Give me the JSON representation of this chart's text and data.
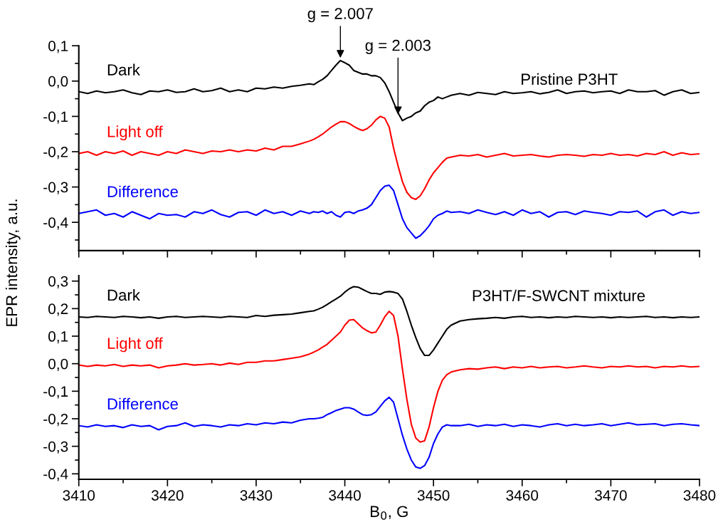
{
  "chart_data": [
    {
      "type": "line",
      "ylabel": "EPR intensity, a.u.",
      "xlim": [
        3410,
        3480
      ],
      "xticks": [
        3410,
        3420,
        3430,
        3440,
        3450,
        3460,
        3470,
        3480
      ],
      "ylim": [
        -0.48,
        0.1
      ],
      "yticks": [
        {
          "value": 0.1,
          "label": "0,1"
        },
        {
          "value": 0.0,
          "label": "0,0"
        },
        {
          "value": -0.1,
          "label": "-0,1"
        },
        {
          "value": -0.2,
          "label": "-0,2"
        },
        {
          "value": -0.3,
          "label": "-0,3"
        },
        {
          "value": -0.4,
          "label": "-0,4"
        }
      ],
      "tick_labels": "y",
      "grid": false,
      "legend": false,
      "annotations": [
        "Pristine P3HT",
        {
          "text": "g = 2.007",
          "x": 3439.5,
          "y": 0.06
        },
        {
          "text": "g = 2.003",
          "x": 3446,
          "y": -0.1
        }
      ],
      "x": [
        3410,
        3411,
        3412,
        3413,
        3414,
        3415,
        3416,
        3417,
        3418,
        3419,
        3420,
        3421,
        3422,
        3423,
        3424,
        3425,
        3426,
        3427,
        3428,
        3429,
        3430,
        3431,
        3432,
        3433,
        3434,
        3435,
        3436,
        3436.5,
        3437,
        3437.5,
        3438,
        3438.5,
        3439,
        3439.5,
        3440,
        3440.5,
        3441,
        3441.5,
        3442,
        3442.5,
        3443,
        3443.5,
        3444,
        3444.5,
        3445,
        3445.5,
        3446,
        3446.5,
        3447,
        3447.5,
        3448,
        3448.5,
        3449,
        3449.5,
        3450,
        3450.5,
        3451,
        3451.5,
        3452,
        3453,
        3454,
        3455,
        3456,
        3457,
        3458,
        3459,
        3460,
        3461,
        3462,
        3463,
        3464,
        3465,
        3466,
        3467,
        3468,
        3469,
        3470,
        3471,
        3472,
        3473,
        3474,
        3475,
        3476,
        3477,
        3478,
        3479,
        3480
      ],
      "series": [
        {
          "name": "Dark",
          "color": "#000000",
          "values": [
            -0.03,
            -0.035,
            -0.028,
            -0.033,
            -0.03,
            -0.025,
            -0.033,
            -0.038,
            -0.028,
            -0.03,
            -0.025,
            -0.032,
            -0.03,
            -0.022,
            -0.03,
            -0.027,
            -0.02,
            -0.03,
            -0.025,
            -0.03,
            -0.02,
            -0.022,
            -0.017,
            -0.02,
            -0.015,
            -0.012,
            -0.008,
            -0.01,
            -0.002,
            0.005,
            0.015,
            0.03,
            0.045,
            0.058,
            0.052,
            0.045,
            0.03,
            0.025,
            0.02,
            0.02,
            0.015,
            0.015,
            0.01,
            -0.005,
            -0.03,
            -0.06,
            -0.09,
            -0.112,
            -0.105,
            -0.1,
            -0.09,
            -0.085,
            -0.07,
            -0.06,
            -0.055,
            -0.045,
            -0.05,
            -0.045,
            -0.04,
            -0.035,
            -0.04,
            -0.032,
            -0.035,
            -0.038,
            -0.03,
            -0.035,
            -0.033,
            -0.03,
            -0.036,
            -0.032,
            -0.025,
            -0.035,
            -0.03,
            -0.028,
            -0.033,
            -0.03,
            -0.028,
            -0.035,
            -0.025,
            -0.03,
            -0.03,
            -0.027,
            -0.04,
            -0.03,
            -0.025,
            -0.035,
            -0.032
          ]
        },
        {
          "name": "Light off",
          "color": "#ff0000",
          "values": [
            -0.205,
            -0.2,
            -0.21,
            -0.2,
            -0.205,
            -0.198,
            -0.21,
            -0.2,
            -0.205,
            -0.21,
            -0.2,
            -0.205,
            -0.195,
            -0.2,
            -0.205,
            -0.198,
            -0.2,
            -0.195,
            -0.2,
            -0.195,
            -0.198,
            -0.19,
            -0.195,
            -0.185,
            -0.185,
            -0.178,
            -0.17,
            -0.165,
            -0.158,
            -0.15,
            -0.14,
            -0.13,
            -0.122,
            -0.115,
            -0.115,
            -0.12,
            -0.128,
            -0.135,
            -0.14,
            -0.135,
            -0.125,
            -0.11,
            -0.1,
            -0.105,
            -0.13,
            -0.19,
            -0.24,
            -0.285,
            -0.315,
            -0.33,
            -0.335,
            -0.325,
            -0.305,
            -0.28,
            -0.26,
            -0.245,
            -0.23,
            -0.218,
            -0.215,
            -0.21,
            -0.212,
            -0.208,
            -0.215,
            -0.21,
            -0.205,
            -0.212,
            -0.21,
            -0.208,
            -0.212,
            -0.215,
            -0.21,
            -0.208,
            -0.21,
            -0.213,
            -0.208,
            -0.21,
            -0.205,
            -0.21,
            -0.208,
            -0.212,
            -0.205,
            -0.208,
            -0.2,
            -0.21,
            -0.203,
            -0.208,
            -0.206
          ]
        },
        {
          "name": "Difference",
          "color": "#0000ff",
          "values": [
            -0.375,
            -0.37,
            -0.365,
            -0.38,
            -0.375,
            -0.385,
            -0.37,
            -0.38,
            -0.39,
            -0.375,
            -0.38,
            -0.378,
            -0.385,
            -0.37,
            -0.375,
            -0.365,
            -0.378,
            -0.385,
            -0.372,
            -0.37,
            -0.38,
            -0.365,
            -0.375,
            -0.37,
            -0.38,
            -0.368,
            -0.375,
            -0.37,
            -0.372,
            -0.368,
            -0.375,
            -0.37,
            -0.38,
            -0.385,
            -0.372,
            -0.37,
            -0.375,
            -0.368,
            -0.365,
            -0.36,
            -0.35,
            -0.33,
            -0.31,
            -0.298,
            -0.295,
            -0.31,
            -0.35,
            -0.39,
            -0.415,
            -0.43,
            -0.445,
            -0.438,
            -0.425,
            -0.41,
            -0.39,
            -0.38,
            -0.375,
            -0.368,
            -0.372,
            -0.37,
            -0.375,
            -0.365,
            -0.372,
            -0.378,
            -0.37,
            -0.38,
            -0.365,
            -0.375,
            -0.37,
            -0.385,
            -0.372,
            -0.37,
            -0.378,
            -0.368,
            -0.372,
            -0.375,
            -0.38,
            -0.37,
            -0.372,
            -0.368,
            -0.385,
            -0.37,
            -0.365,
            -0.38,
            -0.37,
            -0.375,
            -0.372
          ]
        }
      ]
    },
    {
      "type": "line",
      "xlabel": "B$_{0}$, G",
      "xlim": [
        3410,
        3480
      ],
      "xticks": [
        3410,
        3420,
        3430,
        3440,
        3450,
        3460,
        3470,
        3480
      ],
      "ylim": [
        -0.42,
        0.32
      ],
      "yticks": [
        {
          "value": 0.3,
          "label": "0,3"
        },
        {
          "value": 0.2,
          "label": "0,2"
        },
        {
          "value": 0.1,
          "label": "0,1"
        },
        {
          "value": 0.0,
          "label": "0,0"
        },
        {
          "value": -0.1,
          "label": "-0,1"
        },
        {
          "value": -0.2,
          "label": "-0,2"
        },
        {
          "value": -0.3,
          "label": "-0,3"
        },
        {
          "value": -0.4,
          "label": "-0,4"
        }
      ],
      "grid": false,
      "legend": false,
      "annotations": [
        "P3HT/F-SWCNT mixture"
      ],
      "x": [
        3410,
        3411,
        3412,
        3413,
        3414,
        3415,
        3416,
        3417,
        3418,
        3419,
        3420,
        3421,
        3422,
        3423,
        3424,
        3425,
        3426,
        3427,
        3428,
        3429,
        3430,
        3431,
        3432,
        3433,
        3434,
        3435,
        3436,
        3436.5,
        3437,
        3437.5,
        3438,
        3438.5,
        3439,
        3439.5,
        3440,
        3440.5,
        3441,
        3441.5,
        3442,
        3442.5,
        3443,
        3443.5,
        3444,
        3444.5,
        3445,
        3445.5,
        3446,
        3446.5,
        3447,
        3447.5,
        3448,
        3448.5,
        3449,
        3449.5,
        3450,
        3450.5,
        3451,
        3451.5,
        3452,
        3453,
        3454,
        3455,
        3456,
        3457,
        3458,
        3459,
        3460,
        3461,
        3462,
        3463,
        3464,
        3465,
        3466,
        3467,
        3468,
        3469,
        3470,
        3471,
        3472,
        3473,
        3474,
        3475,
        3476,
        3477,
        3478,
        3479,
        3480
      ],
      "series": [
        {
          "name": "Dark",
          "color": "#000000",
          "values": [
            0.17,
            0.168,
            0.172,
            0.17,
            0.168,
            0.172,
            0.17,
            0.167,
            0.17,
            0.165,
            0.17,
            0.172,
            0.168,
            0.17,
            0.172,
            0.17,
            0.168,
            0.172,
            0.17,
            0.168,
            0.175,
            0.172,
            0.176,
            0.178,
            0.18,
            0.185,
            0.19,
            0.192,
            0.198,
            0.205,
            0.215,
            0.225,
            0.235,
            0.245,
            0.26,
            0.272,
            0.28,
            0.278,
            0.27,
            0.262,
            0.255,
            0.255,
            0.252,
            0.26,
            0.262,
            0.26,
            0.255,
            0.235,
            0.19,
            0.14,
            0.095,
            0.055,
            0.03,
            0.03,
            0.05,
            0.075,
            0.1,
            0.125,
            0.14,
            0.155,
            0.16,
            0.163,
            0.165,
            0.168,
            0.165,
            0.17,
            0.172,
            0.168,
            0.17,
            0.167,
            0.17,
            0.168,
            0.172,
            0.17,
            0.168,
            0.17,
            0.167,
            0.17,
            0.168,
            0.17,
            0.172,
            0.168,
            0.17,
            0.167,
            0.17,
            0.168,
            0.17
          ]
        },
        {
          "name": "Light off",
          "color": "#ff0000",
          "values": [
            -0.005,
            -0.01,
            -0.005,
            -0.008,
            -0.003,
            -0.01,
            -0.005,
            -0.008,
            -0.005,
            -0.015,
            -0.008,
            -0.005,
            0.0,
            -0.005,
            -0.003,
            0.0,
            -0.005,
            0.002,
            -0.003,
            0.005,
            0.005,
            0.01,
            0.01,
            0.015,
            0.02,
            0.025,
            0.035,
            0.042,
            0.05,
            0.06,
            0.07,
            0.085,
            0.1,
            0.115,
            0.14,
            0.158,
            0.16,
            0.145,
            0.13,
            0.12,
            0.112,
            0.115,
            0.14,
            0.17,
            0.19,
            0.175,
            0.1,
            -0.02,
            -0.13,
            -0.22,
            -0.27,
            -0.285,
            -0.28,
            -0.23,
            -0.16,
            -0.1,
            -0.06,
            -0.04,
            -0.03,
            -0.022,
            -0.018,
            -0.02,
            -0.015,
            -0.012,
            -0.018,
            -0.012,
            -0.015,
            -0.01,
            -0.015,
            -0.012,
            -0.01,
            -0.015,
            -0.012,
            -0.008,
            -0.012,
            -0.015,
            -0.01,
            -0.012,
            -0.008,
            -0.012,
            -0.01,
            -0.015,
            -0.01,
            -0.012,
            -0.008,
            -0.012,
            -0.01
          ]
        },
        {
          "name": "Difference",
          "color": "#0000ff",
          "values": [
            -0.225,
            -0.23,
            -0.222,
            -0.228,
            -0.225,
            -0.232,
            -0.222,
            -0.228,
            -0.225,
            -0.24,
            -0.228,
            -0.225,
            -0.215,
            -0.228,
            -0.222,
            -0.225,
            -0.23,
            -0.222,
            -0.225,
            -0.218,
            -0.222,
            -0.215,
            -0.218,
            -0.212,
            -0.215,
            -0.205,
            -0.2,
            -0.2,
            -0.198,
            -0.195,
            -0.185,
            -0.178,
            -0.17,
            -0.165,
            -0.16,
            -0.16,
            -0.165,
            -0.175,
            -0.185,
            -0.188,
            -0.185,
            -0.175,
            -0.155,
            -0.135,
            -0.122,
            -0.14,
            -0.2,
            -0.26,
            -0.31,
            -0.35,
            -0.375,
            -0.38,
            -0.37,
            -0.34,
            -0.29,
            -0.255,
            -0.23,
            -0.222,
            -0.225,
            -0.225,
            -0.22,
            -0.228,
            -0.222,
            -0.225,
            -0.22,
            -0.228,
            -0.222,
            -0.225,
            -0.23,
            -0.222,
            -0.218,
            -0.225,
            -0.22,
            -0.225,
            -0.222,
            -0.218,
            -0.225,
            -0.22,
            -0.215,
            -0.222,
            -0.22,
            -0.218,
            -0.225,
            -0.22,
            -0.218,
            -0.222,
            -0.225
          ]
        }
      ]
    }
  ]
}
